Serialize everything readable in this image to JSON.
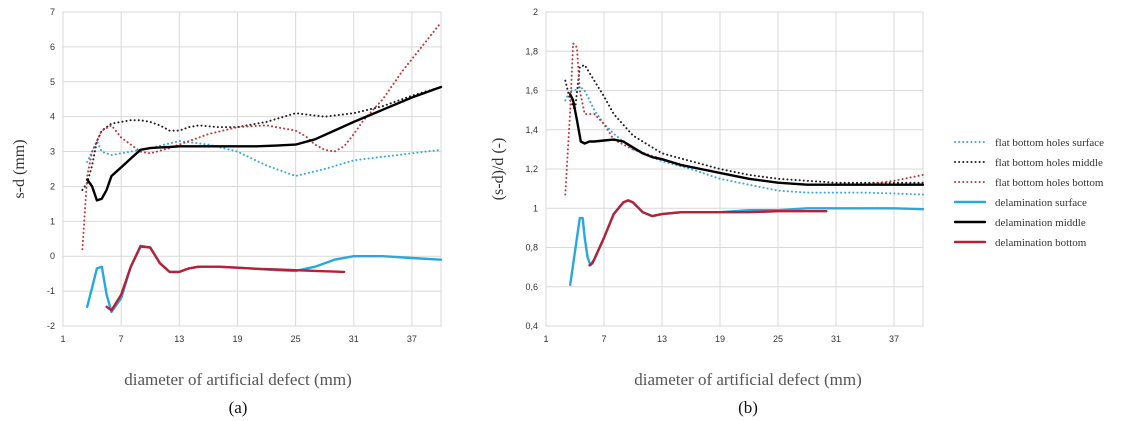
{
  "chart_data": [
    {
      "type": "line",
      "panel_label": "(a)",
      "xlabel": "diameter of artificial defect (mm)",
      "ylabel": "s-d (mm)",
      "xlim": [
        1,
        40
      ],
      "ylim": [
        -2,
        7
      ],
      "xticks": [
        1,
        7,
        13,
        19,
        25,
        31,
        37
      ],
      "yticks": [
        -2,
        -1,
        0,
        1,
        2,
        3,
        4,
        5,
        6,
        7
      ],
      "grid": true,
      "series": [
        {
          "name": "flat bottom holes surface",
          "color": "#3aa6dc",
          "style": "dotted",
          "x": [
            3.5,
            4,
            4.5,
            5,
            6,
            8,
            10,
            13,
            16,
            19,
            22,
            25,
            28,
            31,
            34,
            37,
            40
          ],
          "y": [
            2.7,
            3.0,
            3.3,
            3.0,
            2.9,
            3.0,
            3.1,
            3.3,
            3.2,
            3.0,
            2.6,
            2.3,
            2.5,
            2.75,
            2.85,
            2.95,
            3.05
          ]
        },
        {
          "name": "flat bottom holes middle",
          "color": "#222222",
          "style": "dotted",
          "x": [
            3,
            3.5,
            4,
            4.5,
            5,
            6,
            7,
            8,
            9,
            10,
            11,
            12,
            13,
            14,
            15,
            17,
            19,
            22,
            25,
            28,
            31,
            34,
            37,
            40
          ],
          "y": [
            1.9,
            2.1,
            2.6,
            3.3,
            3.6,
            3.8,
            3.85,
            3.9,
            3.9,
            3.85,
            3.75,
            3.6,
            3.6,
            3.7,
            3.75,
            3.7,
            3.7,
            3.85,
            4.1,
            4.0,
            4.1,
            4.3,
            4.6,
            4.85
          ]
        },
        {
          "name": "flat bottom holes bottom",
          "color": "#c0393b",
          "style": "dotted",
          "x": [
            3,
            3.5,
            4,
            4.5,
            5,
            6,
            7,
            8,
            9,
            10,
            12,
            13,
            16,
            19,
            22,
            25,
            26,
            27,
            28,
            29,
            30,
            31,
            32,
            34,
            36,
            38,
            40
          ],
          "y": [
            0.2,
            2.3,
            3.0,
            3.3,
            3.6,
            3.75,
            3.4,
            3.2,
            3.0,
            2.95,
            3.1,
            3.2,
            3.5,
            3.7,
            3.75,
            3.6,
            3.45,
            3.2,
            3.05,
            3.0,
            3.15,
            3.5,
            3.9,
            4.5,
            5.3,
            6.0,
            6.7
          ]
        },
        {
          "name": "delamination surface",
          "color": "#29a8e0",
          "style": "solid",
          "x": [
            3.5,
            4,
            4.5,
            5,
            5.5,
            6,
            7,
            8,
            9,
            10,
            11,
            12,
            13,
            14,
            15,
            16,
            17,
            19,
            21,
            23,
            25,
            27,
            29,
            31,
            34,
            37,
            40
          ],
          "y": [
            -1.45,
            -0.9,
            -0.35,
            -0.3,
            -1.1,
            -1.6,
            -1.2,
            -0.3,
            0.3,
            0.25,
            -0.2,
            -0.45,
            -0.45,
            -0.35,
            -0.3,
            -0.3,
            -0.3,
            -0.33,
            -0.36,
            -0.4,
            -0.42,
            -0.3,
            -0.1,
            0.0,
            0.0,
            -0.05,
            -0.1
          ]
        },
        {
          "name": "delamination middle",
          "color": "#000000",
          "style": "solid",
          "x": [
            3.5,
            4,
            4.5,
            5,
            5.5,
            6,
            7,
            8,
            9,
            10,
            11,
            12,
            13,
            15,
            17,
            19,
            21,
            23,
            25,
            27,
            29,
            31,
            34,
            37,
            40
          ],
          "y": [
            2.2,
            2.0,
            1.6,
            1.65,
            1.9,
            2.3,
            2.55,
            2.8,
            3.05,
            3.1,
            3.12,
            3.13,
            3.15,
            3.15,
            3.15,
            3.15,
            3.15,
            3.17,
            3.2,
            3.35,
            3.6,
            3.85,
            4.2,
            4.55,
            4.85
          ]
        },
        {
          "name": "delamination bottom",
          "color": "#b52135",
          "style": "solid",
          "x": [
            5.5,
            6,
            7,
            8,
            9,
            10,
            11,
            12,
            13,
            14,
            15,
            16,
            17,
            19,
            21,
            23,
            25,
            27,
            29,
            30
          ],
          "y": [
            -1.45,
            -1.55,
            -1.1,
            -0.3,
            0.28,
            0.25,
            -0.2,
            -0.45,
            -0.45,
            -0.35,
            -0.3,
            -0.3,
            -0.3,
            -0.33,
            -0.36,
            -0.38,
            -0.4,
            -0.42,
            -0.44,
            -0.45
          ]
        }
      ]
    },
    {
      "type": "line",
      "panel_label": "(b)",
      "xlabel": "diameter of artificial defect (mm)",
      "ylabel": "(s-d)/d (-)",
      "xlim": [
        1,
        40
      ],
      "ylim": [
        0.4,
        2
      ],
      "xticks": [
        1,
        7,
        13,
        19,
        25,
        31,
        37
      ],
      "yticks": [
        "0,4",
        "0,6",
        "0,8",
        "1",
        "1,2",
        "1,4",
        "1,6",
        "1,8",
        "2"
      ],
      "grid": true,
      "series": [
        {
          "name": "flat bottom holes surface",
          "color": "#3aa6dc",
          "style": "dotted",
          "x": [
            3,
            3.5,
            4,
            4.5,
            5,
            6,
            7,
            8,
            10,
            13,
            16,
            19,
            22,
            25,
            28,
            31,
            34,
            37,
            40
          ],
          "y": [
            1.55,
            1.6,
            1.6,
            1.62,
            1.6,
            1.5,
            1.43,
            1.38,
            1.3,
            1.24,
            1.2,
            1.15,
            1.12,
            1.09,
            1.08,
            1.08,
            1.08,
            1.075,
            1.07
          ]
        },
        {
          "name": "flat bottom holes middle",
          "color": "#222222",
          "style": "dotted",
          "x": [
            3,
            3.5,
            4,
            4.5,
            5,
            6,
            7,
            8,
            10,
            13,
            16,
            19,
            22,
            25,
            28,
            31,
            34,
            37,
            40
          ],
          "y": [
            1.65,
            1.55,
            1.5,
            1.72,
            1.73,
            1.65,
            1.57,
            1.48,
            1.37,
            1.28,
            1.24,
            1.2,
            1.17,
            1.15,
            1.14,
            1.13,
            1.13,
            1.13,
            1.13
          ]
        },
        {
          "name": "flat bottom holes bottom",
          "color": "#c0393b",
          "style": "dotted",
          "x": [
            3,
            3.5,
            3.8,
            4.2,
            4.5,
            5,
            6,
            7,
            8,
            10,
            13,
            16,
            19,
            22,
            25,
            28,
            31,
            34,
            37,
            40
          ],
          "y": [
            1.07,
            1.5,
            1.84,
            1.82,
            1.6,
            1.48,
            1.48,
            1.43,
            1.35,
            1.3,
            1.25,
            1.21,
            1.18,
            1.15,
            1.13,
            1.12,
            1.12,
            1.12,
            1.14,
            1.17
          ]
        },
        {
          "name": "delamination surface",
          "color": "#29a8e0",
          "style": "solid",
          "x": [
            3.5,
            4,
            4.5,
            4.8,
            5,
            5.3,
            5.6,
            6,
            7,
            8,
            9,
            9.5,
            10,
            11,
            12,
            13,
            15,
            17,
            19,
            22,
            25,
            28,
            31,
            34,
            37,
            40
          ],
          "y": [
            0.61,
            0.78,
            0.95,
            0.95,
            0.85,
            0.75,
            0.71,
            0.74,
            0.85,
            0.97,
            1.03,
            1.04,
            1.03,
            0.98,
            0.96,
            0.97,
            0.98,
            0.98,
            0.98,
            0.99,
            0.99,
            1.0,
            1.0,
            1.0,
            1.0,
            0.995
          ]
        },
        {
          "name": "delamination middle",
          "color": "#000000",
          "style": "solid",
          "x": [
            3.5,
            3.8,
            4.2,
            4.6,
            5,
            5.5,
            6,
            7,
            8,
            9,
            10,
            11,
            12,
            13,
            15,
            17,
            19,
            22,
            25,
            28,
            31,
            34,
            37,
            40
          ],
          "y": [
            1.58,
            1.55,
            1.45,
            1.34,
            1.33,
            1.34,
            1.34,
            1.345,
            1.35,
            1.34,
            1.31,
            1.28,
            1.26,
            1.25,
            1.22,
            1.2,
            1.18,
            1.15,
            1.13,
            1.12,
            1.12,
            1.12,
            1.12,
            1.12
          ]
        },
        {
          "name": "delamination bottom",
          "color": "#b52135",
          "style": "solid",
          "x": [
            5.5,
            5.8,
            6,
            7,
            8,
            9,
            9.5,
            10,
            11,
            12,
            13,
            15,
            17,
            19,
            22,
            25,
            28,
            30
          ],
          "y": [
            0.71,
            0.72,
            0.74,
            0.85,
            0.97,
            1.03,
            1.04,
            1.03,
            0.98,
            0.96,
            0.97,
            0.98,
            0.98,
            0.98,
            0.98,
            0.985,
            0.985,
            0.985
          ]
        }
      ]
    }
  ]
}
